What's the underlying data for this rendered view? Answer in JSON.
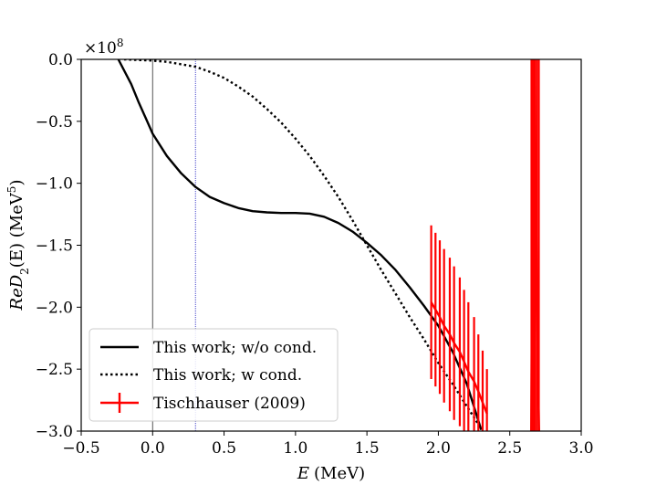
{
  "chart_data": {
    "type": "line",
    "title": "",
    "xlabel": "E (MeV)",
    "xlabel_var": "E",
    "xlabel_unit": "(MeV)",
    "ylabel": "ReD2(E) (MeV^5)",
    "ylabel_main": "ReD",
    "ylabel_sub": "2",
    "ylabel_arg": "(E) (MeV",
    "ylabel_sup": "5",
    "ylabel_close": ")",
    "xlim": [
      -0.5,
      3.0
    ],
    "ylim": [
      -3.0,
      0.0
    ],
    "y_scale_text": "×10",
    "y_scale_exp": "8",
    "x_ticks": [
      -0.5,
      0.0,
      0.5,
      1.0,
      1.5,
      2.0,
      2.5,
      3.0
    ],
    "x_tick_labels": [
      "−0.5",
      "0.0",
      "0.5",
      "1.0",
      "1.5",
      "2.0",
      "2.5",
      "3.0"
    ],
    "y_ticks": [
      0.0,
      -0.5,
      -1.0,
      -1.5,
      -2.0,
      -2.5,
      -3.0
    ],
    "y_tick_labels": [
      "0.0",
      "−0.5",
      "−1.0",
      "−1.5",
      "−2.0",
      "−2.5",
      "−3.0"
    ],
    "reference_lines": [
      {
        "x": 0.0,
        "color": "#555555",
        "style": "solid"
      },
      {
        "x": 0.3,
        "color": "#4444cc",
        "style": "dotted"
      }
    ],
    "series": [
      {
        "name": "This work; w/o cond.",
        "style": "solid",
        "color": "#000000",
        "x": [
          -0.24,
          -0.15,
          -0.1,
          -0.05,
          0.0,
          0.1,
          0.2,
          0.3,
          0.4,
          0.5,
          0.6,
          0.7,
          0.8,
          0.9,
          1.0,
          1.1,
          1.2,
          1.3,
          1.4,
          1.5,
          1.6,
          1.7,
          1.8,
          1.9,
          2.0,
          2.1,
          2.2,
          2.3
        ],
        "y": [
          0.0,
          -0.2,
          -0.34,
          -0.47,
          -0.6,
          -0.78,
          -0.92,
          -1.03,
          -1.11,
          -1.16,
          -1.2,
          -1.225,
          -1.235,
          -1.24,
          -1.24,
          -1.245,
          -1.27,
          -1.32,
          -1.39,
          -1.48,
          -1.58,
          -1.7,
          -1.84,
          -1.99,
          -2.15,
          -2.36,
          -2.62,
          -2.99
        ]
      },
      {
        "name": "This work; w cond.",
        "style": "dotted",
        "color": "#000000",
        "x": [
          -0.2,
          -0.1,
          0.0,
          0.1,
          0.2,
          0.3,
          0.4,
          0.5,
          0.6,
          0.7,
          0.8,
          0.9,
          1.0,
          1.1,
          1.2,
          1.3,
          1.4,
          1.5,
          1.6,
          1.7,
          1.8,
          1.9,
          2.0,
          2.1,
          2.2,
          2.3
        ],
        "y": [
          0.0,
          -0.005,
          -0.01,
          -0.02,
          -0.04,
          -0.06,
          -0.1,
          -0.15,
          -0.22,
          -0.3,
          -0.4,
          -0.51,
          -0.64,
          -0.78,
          -0.94,
          -1.11,
          -1.3,
          -1.5,
          -1.7,
          -1.89,
          -2.08,
          -2.26,
          -2.45,
          -2.62,
          -2.8,
          -2.98
        ]
      }
    ],
    "errorbar_series": {
      "name": "Tischhauser (2009)",
      "color": "#ff0000",
      "points": [
        {
          "x": 1.95,
          "y": -1.96,
          "yerr": 0.62
        },
        {
          "x": 1.98,
          "y": -2.02,
          "yerr": 0.62
        },
        {
          "x": 2.01,
          "y": -2.08,
          "yerr": 0.62
        },
        {
          "x": 2.04,
          "y": -2.15,
          "yerr": 0.62
        },
        {
          "x": 2.08,
          "y": -2.22,
          "yerr": 0.62
        },
        {
          "x": 2.11,
          "y": -2.29,
          "yerr": 0.62
        },
        {
          "x": 2.15,
          "y": -2.36,
          "yerr": 0.6
        },
        {
          "x": 2.18,
          "y": -2.44,
          "yerr": 0.58
        },
        {
          "x": 2.21,
          "y": -2.52,
          "yerr": 0.56
        },
        {
          "x": 2.25,
          "y": -2.6,
          "yerr": 0.52
        },
        {
          "x": 2.28,
          "y": -2.68,
          "yerr": 0.46
        },
        {
          "x": 2.31,
          "y": -2.77,
          "yerr": 0.42
        },
        {
          "x": 2.34,
          "y": -2.86,
          "yerr": 0.36
        }
      ],
      "resonance": {
        "x": [
          2.65,
          2.66,
          2.665,
          2.67,
          2.675,
          2.68,
          2.69,
          2.7,
          2.705
        ],
        "y": [
          -3.0,
          -1.0,
          0.0,
          0.0,
          0.0,
          -0.8,
          -1.9,
          -2.7,
          -3.0
        ]
      }
    },
    "legend": {
      "position": "lower-left",
      "entries": [
        "This work; w/o cond.",
        "This work; w cond.",
        "Tischhauser (2009)"
      ]
    }
  }
}
